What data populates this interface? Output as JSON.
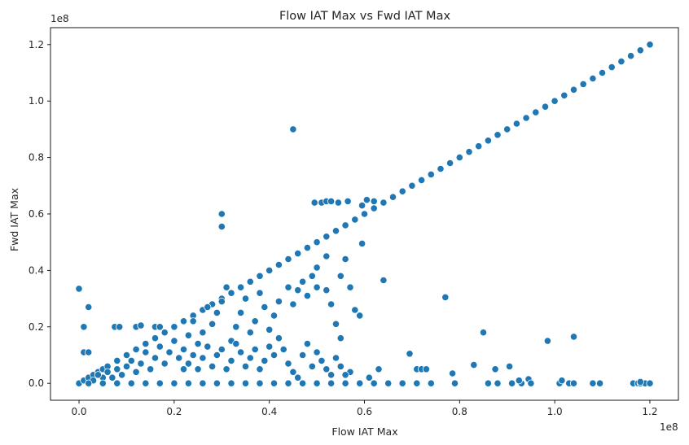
{
  "chart_data": {
    "type": "scatter",
    "title": "Flow IAT Max vs Fwd IAT Max",
    "xlabel": "Flow IAT Max",
    "ylabel": "Fwd IAT Max",
    "x_offset_label": "1e8",
    "y_offset_label": "1e8",
    "xlim": [
      -0.06,
      1.26
    ],
    "ylim": [
      -0.06,
      1.26
    ],
    "units_note": "values in units of 1e8",
    "x_ticks": [
      0.0,
      0.2,
      0.4,
      0.6,
      0.8,
      1.0,
      1.2
    ],
    "x_tick_labels": [
      "0.0",
      "0.2",
      "0.4",
      "0.6",
      "0.8",
      "1.0",
      "1.2"
    ],
    "y_ticks": [
      0.0,
      0.2,
      0.4,
      0.6,
      0.8,
      1.0,
      1.2
    ],
    "y_tick_labels": [
      "0.0",
      "0.2",
      "0.4",
      "0.6",
      "0.8",
      "1.0",
      "1.2"
    ],
    "grid": false,
    "marker_color": "#1f77b4",
    "points": [
      [
        0.0,
        0.0
      ],
      [
        0.01,
        0.01
      ],
      [
        0.02,
        0.02
      ],
      [
        0.03,
        0.03
      ],
      [
        0.04,
        0.04
      ],
      [
        0.05,
        0.05
      ],
      [
        0.06,
        0.06
      ],
      [
        0.08,
        0.08
      ],
      [
        0.1,
        0.1
      ],
      [
        0.12,
        0.12
      ],
      [
        0.14,
        0.14
      ],
      [
        0.16,
        0.16
      ],
      [
        0.18,
        0.18
      ],
      [
        0.2,
        0.2
      ],
      [
        0.22,
        0.22
      ],
      [
        0.24,
        0.24
      ],
      [
        0.26,
        0.26
      ],
      [
        0.28,
        0.28
      ],
      [
        0.3,
        0.3
      ],
      [
        0.32,
        0.32
      ],
      [
        0.34,
        0.34
      ],
      [
        0.36,
        0.36
      ],
      [
        0.38,
        0.38
      ],
      [
        0.4,
        0.4
      ],
      [
        0.42,
        0.42
      ],
      [
        0.44,
        0.44
      ],
      [
        0.46,
        0.46
      ],
      [
        0.48,
        0.48
      ],
      [
        0.5,
        0.5
      ],
      [
        0.52,
        0.52
      ],
      [
        0.54,
        0.54
      ],
      [
        0.56,
        0.56
      ],
      [
        0.58,
        0.58
      ],
      [
        0.6,
        0.6
      ],
      [
        0.62,
        0.62
      ],
      [
        0.64,
        0.64
      ],
      [
        0.66,
        0.66
      ],
      [
        0.68,
        0.68
      ],
      [
        0.7,
        0.7
      ],
      [
        0.72,
        0.72
      ],
      [
        0.74,
        0.74
      ],
      [
        0.76,
        0.76
      ],
      [
        0.78,
        0.78
      ],
      [
        0.8,
        0.8
      ],
      [
        0.82,
        0.82
      ],
      [
        0.84,
        0.84
      ],
      [
        0.86,
        0.86
      ],
      [
        0.88,
        0.88
      ],
      [
        0.9,
        0.9
      ],
      [
        0.92,
        0.92
      ],
      [
        0.94,
        0.94
      ],
      [
        0.96,
        0.96
      ],
      [
        0.98,
        0.98
      ],
      [
        1.0,
        1.0
      ],
      [
        1.02,
        1.02
      ],
      [
        1.04,
        1.04
      ],
      [
        1.06,
        1.06
      ],
      [
        1.08,
        1.08
      ],
      [
        1.1,
        1.1
      ],
      [
        1.12,
        1.12
      ],
      [
        1.14,
        1.14
      ],
      [
        1.16,
        1.16
      ],
      [
        1.18,
        1.18
      ],
      [
        1.2,
        1.2
      ],
      [
        0.45,
        0.9
      ],
      [
        0.3,
        0.6
      ],
      [
        0.3,
        0.555
      ],
      [
        0.495,
        0.64
      ],
      [
        0.51,
        0.64
      ],
      [
        0.52,
        0.645
      ],
      [
        0.53,
        0.645
      ],
      [
        0.545,
        0.64
      ],
      [
        0.565,
        0.645
      ],
      [
        0.595,
        0.63
      ],
      [
        0.605,
        0.65
      ],
      [
        0.62,
        0.645
      ],
      [
        0.595,
        0.495
      ],
      [
        0.64,
        0.365
      ],
      [
        0.0,
        0.335
      ],
      [
        0.02,
        0.27
      ],
      [
        0.01,
        0.2
      ],
      [
        0.075,
        0.2
      ],
      [
        0.085,
        0.2
      ],
      [
        0.12,
        0.2
      ],
      [
        0.13,
        0.205
      ],
      [
        0.16,
        0.2
      ],
      [
        0.17,
        0.2
      ],
      [
        0.01,
        0.11
      ],
      [
        0.02,
        0.11
      ],
      [
        0.77,
        0.305
      ],
      [
        0.85,
        0.18
      ],
      [
        0.985,
        0.15
      ],
      [
        1.04,
        0.165
      ],
      [
        0.695,
        0.105
      ],
      [
        0.785,
        0.035
      ],
      [
        0.83,
        0.065
      ],
      [
        0.875,
        0.05
      ],
      [
        0.905,
        0.06
      ],
      [
        0.945,
        0.015
      ],
      [
        0.71,
        0.05
      ],
      [
        0.72,
        0.05
      ],
      [
        0.73,
        0.05
      ],
      [
        0.63,
        0.05
      ],
      [
        0.61,
        0.02
      ],
      [
        0.57,
        0.04
      ],
      [
        0.52,
        0.45
      ],
      [
        0.55,
        0.38
      ],
      [
        0.56,
        0.44
      ],
      [
        0.57,
        0.34
      ],
      [
        0.58,
        0.26
      ],
      [
        0.59,
        0.24
      ],
      [
        0.5,
        0.41
      ],
      [
        0.5,
        0.34
      ],
      [
        0.52,
        0.33
      ],
      [
        0.53,
        0.28
      ],
      [
        0.54,
        0.21
      ],
      [
        0.55,
        0.16
      ],
      [
        0.47,
        0.36
      ],
      [
        0.48,
        0.31
      ],
      [
        0.49,
        0.38
      ],
      [
        0.46,
        0.33
      ],
      [
        0.45,
        0.28
      ],
      [
        0.44,
        0.34
      ],
      [
        0.42,
        0.29
      ],
      [
        0.41,
        0.24
      ],
      [
        0.4,
        0.19
      ],
      [
        0.39,
        0.27
      ],
      [
        0.38,
        0.32
      ],
      [
        0.37,
        0.22
      ],
      [
        0.36,
        0.18
      ],
      [
        0.35,
        0.3
      ],
      [
        0.34,
        0.25
      ],
      [
        0.33,
        0.2
      ],
      [
        0.32,
        0.15
      ],
      [
        0.31,
        0.34
      ],
      [
        0.3,
        0.29
      ],
      [
        0.29,
        0.25
      ],
      [
        0.28,
        0.21
      ],
      [
        0.27,
        0.27
      ],
      [
        0.26,
        0.18
      ],
      [
        0.25,
        0.14
      ],
      [
        0.24,
        0.22
      ],
      [
        0.23,
        0.17
      ],
      [
        0.22,
        0.12
      ],
      [
        0.21,
        0.09
      ],
      [
        0.2,
        0.15
      ],
      [
        0.19,
        0.11
      ],
      [
        0.18,
        0.07
      ],
      [
        0.17,
        0.13
      ],
      [
        0.16,
        0.09
      ],
      [
        0.15,
        0.05
      ],
      [
        0.14,
        0.11
      ],
      [
        0.13,
        0.07
      ],
      [
        0.12,
        0.04
      ],
      [
        0.11,
        0.08
      ],
      [
        0.1,
        0.06
      ],
      [
        0.09,
        0.03
      ],
      [
        0.08,
        0.05
      ],
      [
        0.07,
        0.02
      ],
      [
        0.06,
        0.04
      ],
      [
        0.05,
        0.02
      ],
      [
        0.04,
        0.03
      ],
      [
        0.03,
        0.01
      ],
      [
        0.43,
        0.12
      ],
      [
        0.44,
        0.07
      ],
      [
        0.45,
        0.04
      ],
      [
        0.46,
        0.02
      ],
      [
        0.47,
        0.1
      ],
      [
        0.48,
        0.14
      ],
      [
        0.49,
        0.06
      ],
      [
        0.5,
        0.11
      ],
      [
        0.51,
        0.08
      ],
      [
        0.52,
        0.05
      ],
      [
        0.53,
        0.03
      ],
      [
        0.54,
        0.09
      ],
      [
        0.55,
        0.06
      ],
      [
        0.56,
        0.03
      ],
      [
        0.42,
        0.16
      ],
      [
        0.41,
        0.1
      ],
      [
        0.4,
        0.13
      ],
      [
        0.39,
        0.08
      ],
      [
        0.38,
        0.05
      ],
      [
        0.37,
        0.12
      ],
      [
        0.36,
        0.09
      ],
      [
        0.35,
        0.06
      ],
      [
        0.34,
        0.11
      ],
      [
        0.33,
        0.14
      ],
      [
        0.32,
        0.08
      ],
      [
        0.31,
        0.05
      ],
      [
        0.3,
        0.12
      ],
      [
        0.29,
        0.1
      ],
      [
        0.28,
        0.06
      ],
      [
        0.27,
        0.13
      ],
      [
        0.26,
        0.09
      ],
      [
        0.25,
        0.05
      ],
      [
        0.24,
        0.1
      ],
      [
        0.23,
        0.07
      ],
      [
        0.22,
        0.05
      ],
      [
        0.02,
        0.0
      ],
      [
        0.05,
        0.0
      ],
      [
        0.08,
        0.0
      ],
      [
        0.11,
        0.0
      ],
      [
        0.14,
        0.0
      ],
      [
        0.17,
        0.0
      ],
      [
        0.2,
        0.0
      ],
      [
        0.23,
        0.0
      ],
      [
        0.26,
        0.0
      ],
      [
        0.29,
        0.0
      ],
      [
        0.32,
        0.0
      ],
      [
        0.35,
        0.0
      ],
      [
        0.38,
        0.0
      ],
      [
        0.41,
        0.0
      ],
      [
        0.44,
        0.0
      ],
      [
        0.47,
        0.0
      ],
      [
        0.5,
        0.0
      ],
      [
        0.53,
        0.0
      ],
      [
        0.56,
        0.0
      ],
      [
        0.59,
        0.0
      ],
      [
        0.62,
        0.0
      ],
      [
        0.65,
        0.0
      ],
      [
        0.68,
        0.0
      ],
      [
        0.71,
        0.0
      ],
      [
        0.74,
        0.0
      ],
      [
        0.79,
        0.0
      ],
      [
        0.86,
        0.0
      ],
      [
        0.88,
        0.0
      ],
      [
        0.91,
        0.0
      ],
      [
        0.93,
        0.0
      ],
      [
        0.95,
        0.0
      ],
      [
        1.01,
        0.0
      ],
      [
        1.03,
        0.0
      ],
      [
        1.04,
        0.0
      ],
      [
        1.08,
        0.0
      ],
      [
        1.095,
        0.0
      ],
      [
        1.165,
        0.0
      ],
      [
        1.175,
        0.0
      ],
      [
        1.18,
        0.0
      ],
      [
        1.19,
        0.0
      ],
      [
        1.2,
        0.0
      ],
      [
        1.015,
        0.01
      ],
      [
        1.18,
        0.005
      ],
      [
        0.925,
        0.01
      ]
    ]
  }
}
